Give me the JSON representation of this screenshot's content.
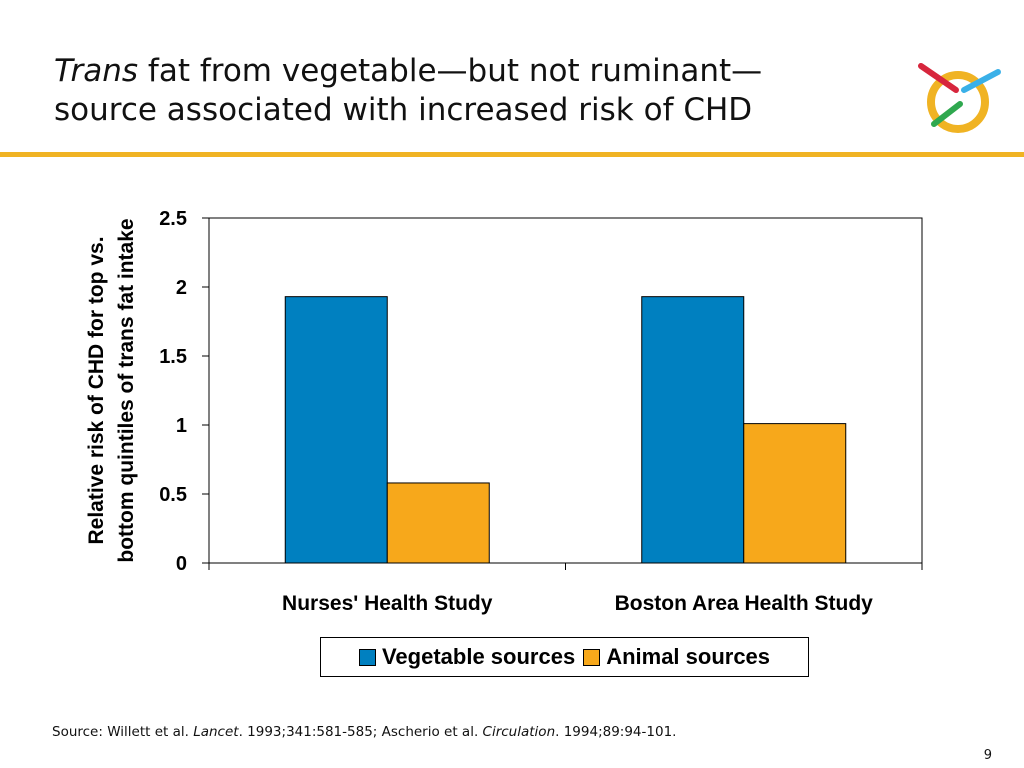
{
  "slide": {
    "title_italic": "Trans",
    "title_rest_line1": " fat from vegetable—but not ruminant—",
    "title_line2": "source associated with increased risk of CHD",
    "source_prefix": "Source: Willett et al. ",
    "source_journal1": "Lancet",
    "source_mid": ". 1993;341:581-585; Ascherio et al. ",
    "source_journal2": "Circulation",
    "source_suffix": ". 1994;89:94-101.",
    "page_number": "9"
  },
  "colors": {
    "accent_rule": "#f0b323",
    "vegetable": "#0080c0",
    "animal": "#f7a81b"
  },
  "chart_data": {
    "type": "bar",
    "categories": [
      "Nurses' Health Study",
      "Boston Area Health Study"
    ],
    "series": [
      {
        "name": "Vegetable sources",
        "values": [
          1.93,
          1.93
        ]
      },
      {
        "name": "Animal sources",
        "values": [
          0.58,
          1.01
        ]
      }
    ],
    "ylabel_line1": "Relative risk of CHD for top vs.",
    "ylabel_line2": "bottom quintiles of trans fat intake",
    "ylim": [
      0,
      2.5
    ],
    "yticks": [
      "0",
      "0.5",
      "1",
      "1.5",
      "2",
      "2.5"
    ],
    "ytick_values": [
      0,
      0.5,
      1,
      1.5,
      2,
      2.5
    ],
    "grid": false,
    "legend_position": "bottom"
  }
}
